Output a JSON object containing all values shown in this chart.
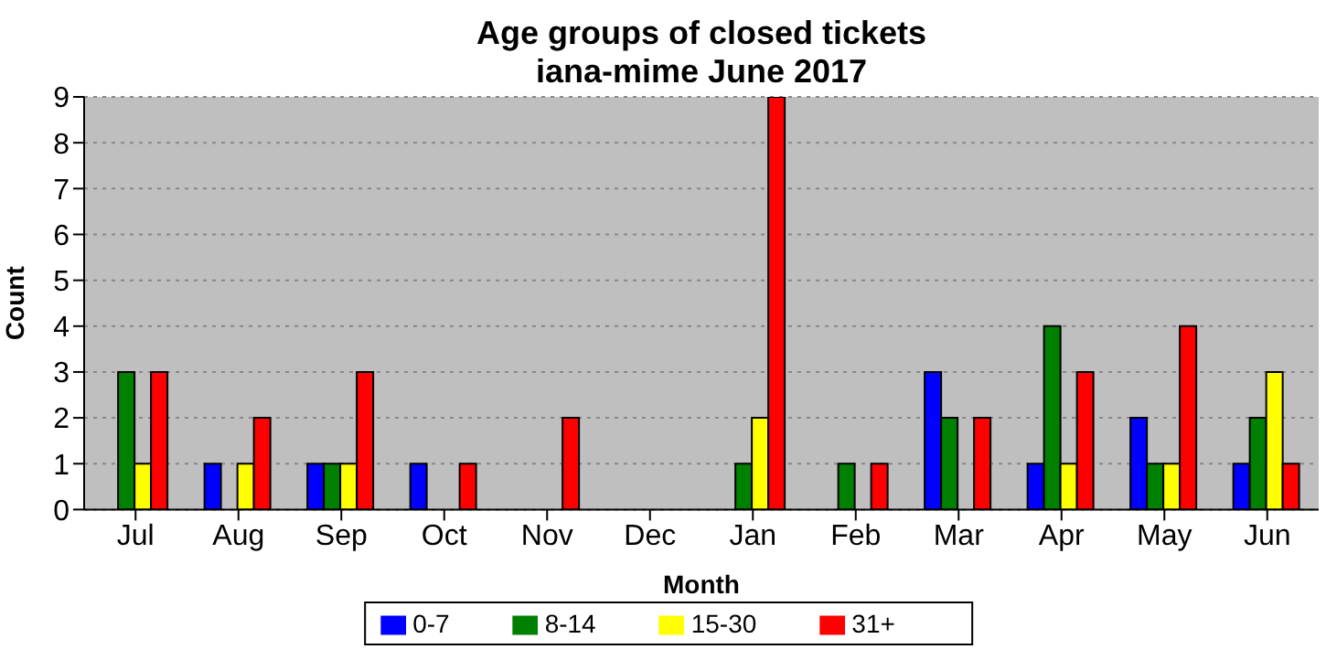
{
  "chart_data": {
    "type": "bar",
    "title": "Age groups of closed tickets\niana-mime June 2017",
    "xlabel": "Month",
    "ylabel": "Count",
    "categories": [
      "Jul",
      "Aug",
      "Sep",
      "Oct",
      "Nov",
      "Dec",
      "Jan",
      "Feb",
      "Mar",
      "Apr",
      "May",
      "Jun"
    ],
    "series": [
      {
        "name": "0-7",
        "color": "#0000ff",
        "values": [
          0,
          1,
          1,
          1,
          0,
          0,
          0,
          0,
          3,
          1,
          2,
          1
        ]
      },
      {
        "name": "8-14",
        "color": "#008000",
        "values": [
          3,
          0,
          1,
          0,
          0,
          0,
          1,
          1,
          2,
          4,
          1,
          2
        ]
      },
      {
        "name": "15-30",
        "color": "#ffff00",
        "values": [
          1,
          1,
          1,
          0,
          0,
          0,
          2,
          0,
          0,
          1,
          1,
          3
        ]
      },
      {
        "name": "31+",
        "color": "#ff0000",
        "values": [
          3,
          2,
          3,
          1,
          2,
          0,
          9,
          1,
          2,
          3,
          4,
          1
        ]
      }
    ],
    "ylim": [
      0,
      9
    ],
    "yticks": [
      0,
      1,
      2,
      3,
      4,
      5,
      6,
      7,
      8,
      9
    ],
    "grid": "y",
    "legend": "bottom"
  }
}
